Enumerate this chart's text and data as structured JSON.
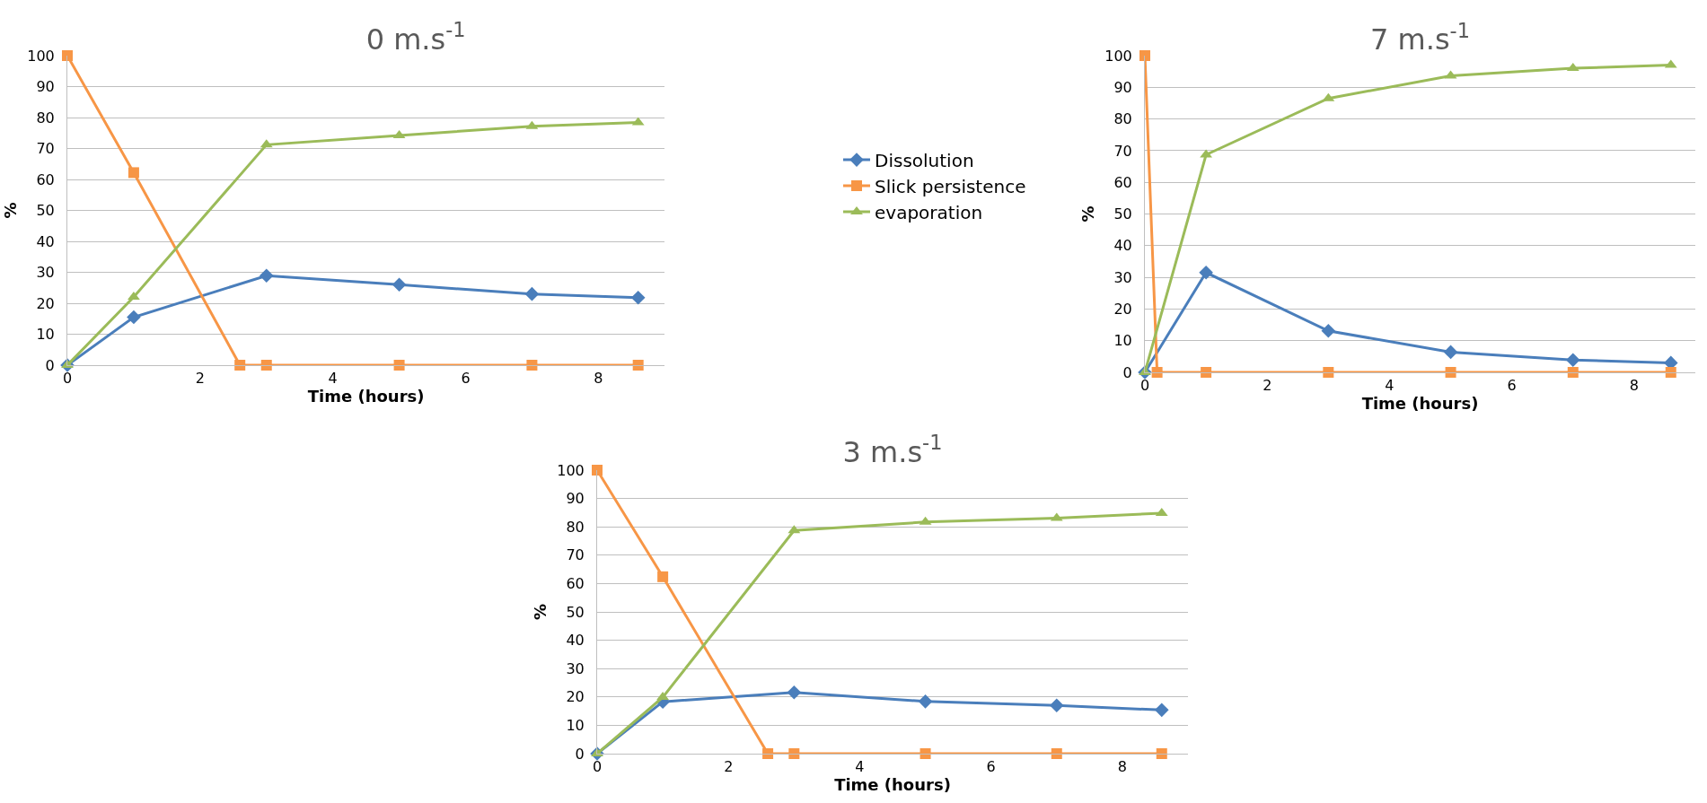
{
  "chart_data": [
    {
      "type": "line",
      "title": "0 m.s$^{-1}$",
      "xlabel": "Time (hours)",
      "ylabel": "%",
      "xlim": [
        0,
        9
      ],
      "xticks": [
        0,
        2,
        4,
        6,
        8
      ],
      "ylim": [
        0,
        100
      ],
      "yticks": [
        0,
        10,
        20,
        30,
        40,
        50,
        60,
        70,
        80,
        90,
        100
      ],
      "grid": "y",
      "legend": "right",
      "series": [
        {
          "name": "Dissolution",
          "color": "#4a7ebb",
          "marker": "diamond",
          "x": [
            0,
            1,
            3,
            5,
            7,
            8.6
          ],
          "values": [
            0,
            15.5,
            28.9,
            26,
            23,
            21.8
          ]
        },
        {
          "name": "Slick persistence",
          "color": "#f79646",
          "marker": "square",
          "x": [
            0,
            1,
            2.6,
            3,
            5,
            7,
            8.6
          ],
          "values": [
            100,
            62.2,
            0,
            0,
            0,
            0,
            0
          ]
        },
        {
          "name": "evaporation",
          "color": "#9bbb59",
          "marker": "triangle",
          "x": [
            0,
            1,
            3,
            5,
            7,
            8.6
          ],
          "values": [
            0,
            22,
            71.2,
            74.2,
            77.2,
            78.4
          ]
        }
      ]
    },
    {
      "type": "line",
      "title": "7 m.s$^{-1}$",
      "xlabel": "Time (hours)",
      "ylabel": "%",
      "xlim": [
        0,
        9
      ],
      "xticks": [
        0,
        2,
        4,
        6,
        8
      ],
      "ylim": [
        0,
        100
      ],
      "yticks": [
        0,
        10,
        20,
        30,
        40,
        50,
        60,
        70,
        80,
        90,
        100
      ],
      "grid": "y",
      "legend": false,
      "series": [
        {
          "color": "#4a7ebb",
          "marker": "diamond",
          "x": [
            0,
            1,
            3,
            5,
            7,
            8.6
          ],
          "values": [
            0,
            31.5,
            13.1,
            6.4,
            3.9,
            3
          ]
        },
        {
          "color": "#f79646",
          "marker": "square",
          "x": [
            0,
            0.2,
            1,
            3,
            5,
            7,
            8.6
          ],
          "values": [
            100,
            0,
            0,
            0,
            0,
            0,
            0
          ]
        },
        {
          "color": "#9bbb59",
          "marker": "triangle",
          "x": [
            0,
            1,
            3,
            5,
            7,
            8.6
          ],
          "values": [
            0,
            68.7,
            86.5,
            93.6,
            96,
            97
          ]
        }
      ]
    },
    {
      "type": "line",
      "title": "3 m.s$^{-1}$",
      "xlabel": "Time (hours)",
      "ylabel": "%",
      "xlim": [
        0,
        9
      ],
      "xticks": [
        0,
        2,
        4,
        6,
        8
      ],
      "ylim": [
        0,
        100
      ],
      "yticks": [
        0,
        10,
        20,
        30,
        40,
        50,
        60,
        70,
        80,
        90,
        100
      ],
      "grid": "y",
      "legend": false,
      "series": [
        {
          "color": "#4a7ebb",
          "marker": "diamond",
          "x": [
            0,
            1,
            3,
            5,
            7,
            8.6
          ],
          "values": [
            0,
            18.3,
            21.6,
            18.4,
            17,
            15.4
          ]
        },
        {
          "color": "#f79646",
          "marker": "square",
          "x": [
            0,
            1,
            2.6,
            3,
            5,
            7,
            8.6
          ],
          "values": [
            100,
            62.4,
            0,
            0,
            0,
            0,
            0
          ]
        },
        {
          "color": "#9bbb59",
          "marker": "triangle",
          "x": [
            0,
            1,
            3,
            5,
            7,
            8.6
          ],
          "values": [
            0,
            19.9,
            78.7,
            81.7,
            83.1,
            84.8
          ]
        }
      ]
    }
  ]
}
